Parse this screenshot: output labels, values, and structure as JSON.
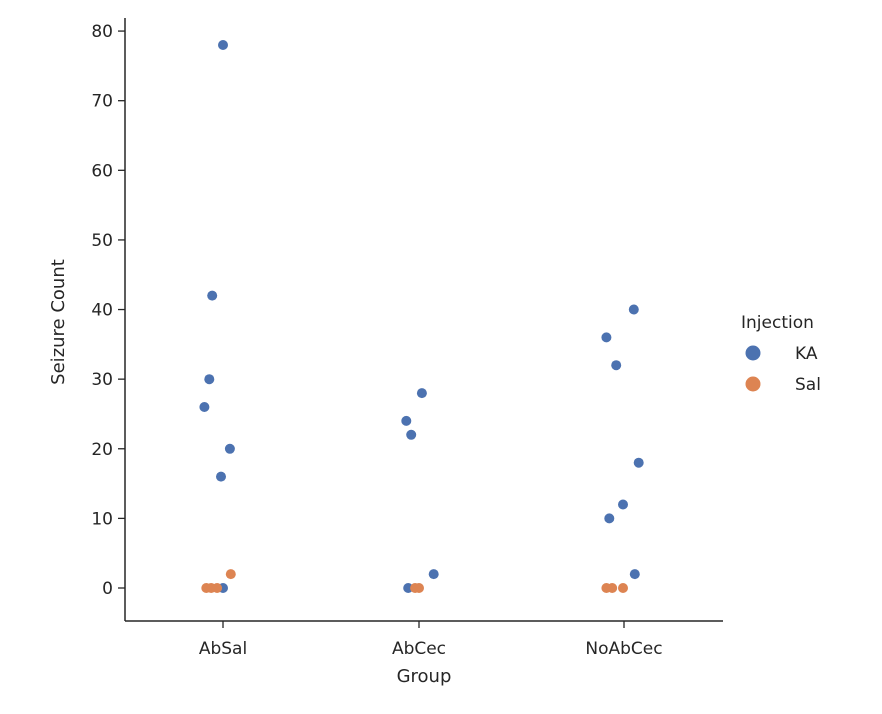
{
  "chart_data": {
    "type": "scatter",
    "subtype": "strip",
    "xlabel": "Group",
    "ylabel": "Seizure Count",
    "categories": [
      "AbSal",
      "AbCec",
      "NoAbCec"
    ],
    "ylim": [
      -5,
      82
    ],
    "yticks": [
      0,
      10,
      20,
      30,
      40,
      50,
      60,
      70,
      80
    ],
    "grid": false,
    "legend": {
      "title": "Injection",
      "placement": "right",
      "entries": [
        "KA",
        "Sal"
      ]
    },
    "colors": {
      "KA": "#4c72b0",
      "Sal": "#dd8452"
    },
    "series": [
      {
        "name": "KA",
        "points": [
          {
            "category": "AbSal",
            "y": 78,
            "jitter": 0.0
          },
          {
            "category": "AbSal",
            "y": 42,
            "jitter": -0.11
          },
          {
            "category": "AbSal",
            "y": 30,
            "jitter": -0.14
          },
          {
            "category": "AbSal",
            "y": 26,
            "jitter": -0.19
          },
          {
            "category": "AbSal",
            "y": 20,
            "jitter": 0.07
          },
          {
            "category": "AbSal",
            "y": 16,
            "jitter": -0.02
          },
          {
            "category": "AbSal",
            "y": 0,
            "jitter": 0.0
          },
          {
            "category": "AbCec",
            "y": 28,
            "jitter": 0.03
          },
          {
            "category": "AbCec",
            "y": 24,
            "jitter": -0.13
          },
          {
            "category": "AbCec",
            "y": 22,
            "jitter": -0.08
          },
          {
            "category": "AbCec",
            "y": 2,
            "jitter": 0.15
          },
          {
            "category": "AbCec",
            "y": 0,
            "jitter": -0.11
          },
          {
            "category": "NoAbCec",
            "y": 40,
            "jitter": 0.1
          },
          {
            "category": "NoAbCec",
            "y": 36,
            "jitter": -0.18
          },
          {
            "category": "NoAbCec",
            "y": 32,
            "jitter": -0.08
          },
          {
            "category": "NoAbCec",
            "y": 18,
            "jitter": 0.15
          },
          {
            "category": "NoAbCec",
            "y": 12,
            "jitter": -0.01
          },
          {
            "category": "NoAbCec",
            "y": 10,
            "jitter": -0.15
          },
          {
            "category": "NoAbCec",
            "y": 2,
            "jitter": 0.11
          }
        ]
      },
      {
        "name": "Sal",
        "points": [
          {
            "category": "AbSal",
            "y": 2,
            "jitter": 0.08
          },
          {
            "category": "AbSal",
            "y": 0,
            "jitter": -0.17
          },
          {
            "category": "AbSal",
            "y": 0,
            "jitter": -0.12
          },
          {
            "category": "AbSal",
            "y": 0,
            "jitter": -0.06
          },
          {
            "category": "AbCec",
            "y": 0,
            "jitter": -0.04
          },
          {
            "category": "AbCec",
            "y": 0,
            "jitter": 0.0
          },
          {
            "category": "NoAbCec",
            "y": 0,
            "jitter": -0.18
          },
          {
            "category": "NoAbCec",
            "y": 0,
            "jitter": -0.12
          },
          {
            "category": "NoAbCec",
            "y": 0,
            "jitter": -0.01
          }
        ]
      }
    ]
  }
}
